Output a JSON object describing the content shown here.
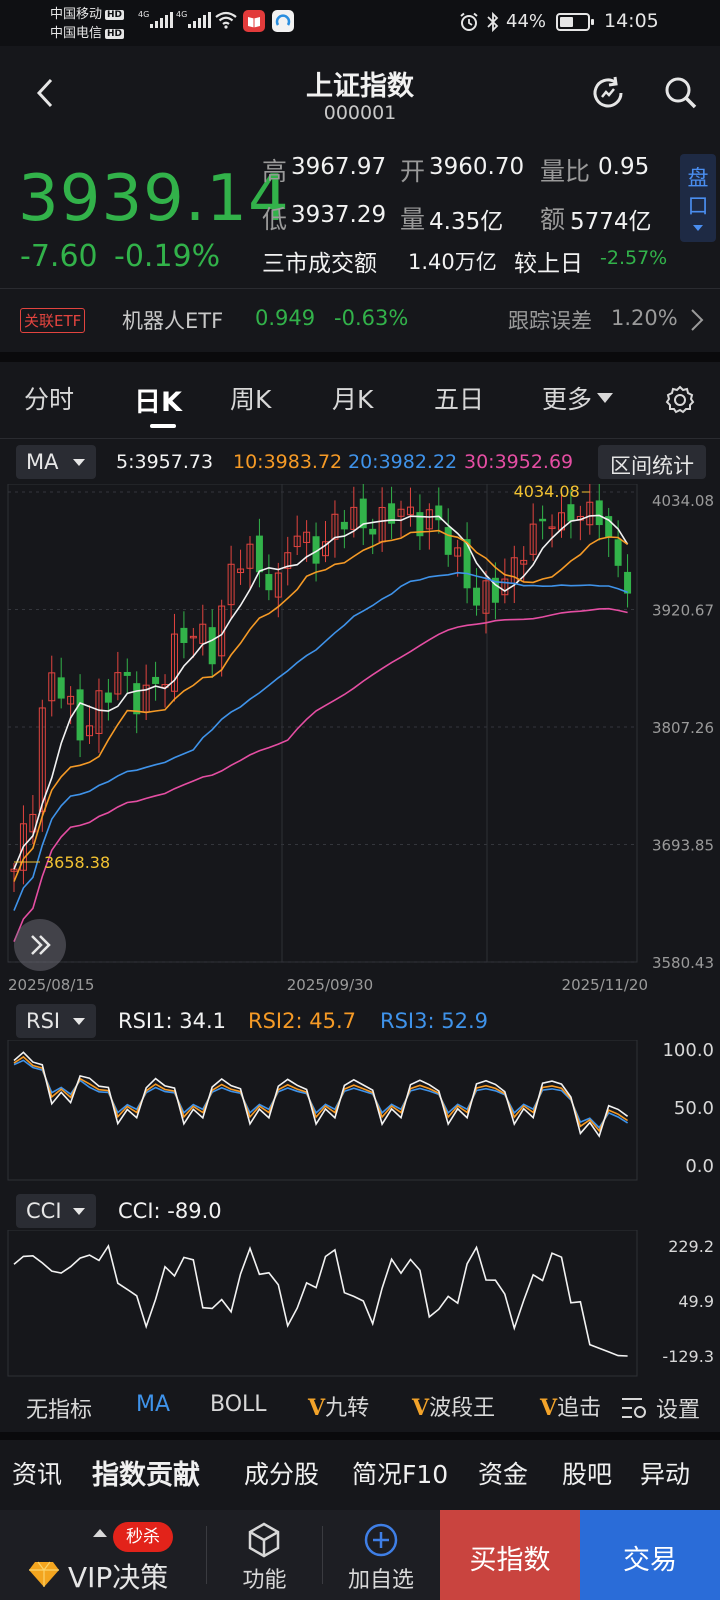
{
  "status": {
    "carrier1": "中国移动",
    "carrier2": "中国电信",
    "hd": "HD",
    "net1": "4G",
    "net2": "4G",
    "battery": "44%",
    "time": "14:05"
  },
  "header": {
    "title": "上证指数",
    "code": "000001"
  },
  "quote": {
    "price": "3939.14",
    "change": "-7.60",
    "change_pct": "-0.19%",
    "high_label": "高",
    "high": "3967.97",
    "open_label": "开",
    "open": "3960.70",
    "ratio_label": "量比",
    "ratio": "0.95",
    "low_label": "低",
    "low": "3937.29",
    "vol_label": "量",
    "vol": "4.35亿",
    "amt_label": "额",
    "amt": "5774亿",
    "market_label": "三市成交额",
    "market_amt": "1.40万亿",
    "compare_label": "较上日",
    "compare": "-2.57%",
    "pan_label1": "盘",
    "pan_label2": "口"
  },
  "etf": {
    "tag": "关联ETF",
    "name": "机器人ETF",
    "price": "0.949",
    "pct": "-0.63%",
    "track_label": "跟踪误差",
    "track": "1.20%"
  },
  "tabs": [
    "分时",
    "日K",
    "周K",
    "月K",
    "五日",
    "更多"
  ],
  "ma_bar": {
    "selector": "MA",
    "ma5": "5:3957.73",
    "ma10": "10:3983.72",
    "ma20": "20:3982.22",
    "ma30": "30:3952.69",
    "stats_button": "区间统计"
  },
  "kline": {
    "y_labels": [
      "4034.08",
      "3920.67",
      "3807.26",
      "3693.85",
      "3580.43"
    ],
    "dates": [
      "2025/08/15",
      "2025/09/30",
      "2025/11/20"
    ],
    "high_mark": "4034.08",
    "low_mark": "3658.38"
  },
  "rsi": {
    "selector": "RSI",
    "rsi1": "RSI1: 34.1",
    "rsi2": "RSI2: 45.7",
    "rsi3": "RSI3: 52.9",
    "y_labels": [
      "100.0",
      "50.0",
      "0.0"
    ]
  },
  "cci": {
    "selector": "CCI",
    "value": "CCI: -89.0",
    "y_labels": [
      "229.2",
      "49.9",
      "-129.3"
    ]
  },
  "indicators": {
    "none": "无指标",
    "ma": "MA",
    "boll": "BOLL",
    "v_prefix": "V",
    "jiuzhuan": "九转",
    "boduan": "波段王",
    "zhuiji": "追击",
    "settings": "设置"
  },
  "bottom_tabs": [
    "资讯",
    "指数贡献",
    "成分股",
    "简况F10",
    "资金",
    "股吧",
    "异动"
  ],
  "toolbar": {
    "badge": "秒杀",
    "vip": "VIP决策",
    "func": "功能",
    "add": "加自选",
    "buy": "买指数",
    "trade": "交易"
  },
  "colors": {
    "up": "#e2443f",
    "down": "#32b24a",
    "ma5": "#f2f2f2",
    "ma10": "#f59a26",
    "ma20": "#3f93ea",
    "ma30": "#e54ea3",
    "buy_bg": "#c9443f",
    "trade_bg": "#2a6cd8"
  }
}
